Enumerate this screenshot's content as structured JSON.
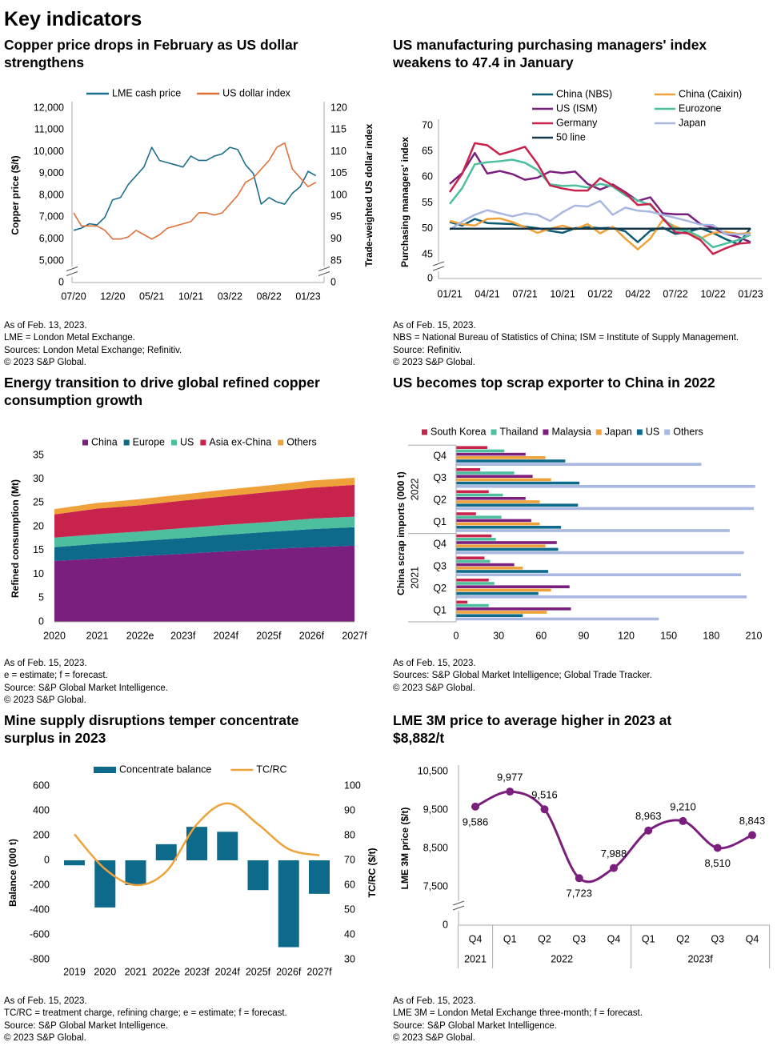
{
  "title": "Key indicators",
  "chart_data": [
    {
      "type": "line",
      "title": [
        "Copper price drops in February as US dollar",
        "strengthens"
      ],
      "categories": [
        "07/20",
        null,
        null,
        null,
        null,
        "12/20",
        null,
        null,
        null,
        null,
        "05/21",
        null,
        null,
        null,
        null,
        "10/21",
        null,
        null,
        null,
        null,
        "03/22",
        null,
        null,
        null,
        null,
        "08/22",
        null,
        null,
        null,
        null,
        "01/23",
        null
      ],
      "series": [
        {
          "name": "LME cash price",
          "color": "#1b6f8c",
          "values": [
            6400,
            6500,
            6700,
            6650,
            7000,
            7800,
            7900,
            8500,
            8900,
            9300,
            10200,
            9600,
            9500,
            9400,
            9300,
            9800,
            9600,
            9600,
            9800,
            9900,
            10200,
            10100,
            9400,
            9000,
            7600,
            7900,
            7700,
            7600,
            8100,
            8400,
            9100,
            8900
          ]
        },
        {
          "name": "US dollar index",
          "color": "#e0703a",
          "axis": "y2",
          "values": [
            96,
            93,
            93,
            93,
            92,
            90,
            90,
            90.5,
            92,
            91,
            90,
            91,
            92.5,
            93,
            93.5,
            94,
            96,
            96,
            95.5,
            96,
            98,
            100,
            103,
            104,
            106,
            108,
            111,
            112,
            106,
            104,
            102,
            103
          ]
        }
      ],
      "ylabel": "Copper price ($/t)",
      "y2label": "Trade-weighted US dollar index",
      "ylim": [
        0,
        12000
      ],
      "yticks": [
        0,
        {
          "value": 5000,
          "label": "5,000"
        },
        {
          "value": 6000,
          "label": "6,000"
        },
        {
          "value": 7000,
          "label": "7,000"
        },
        {
          "value": 8000,
          "label": "8,000"
        },
        {
          "value": 9000,
          "label": "9,000"
        },
        {
          "value": 10000,
          "label": "10,000"
        },
        {
          "value": 11000,
          "label": "11,000"
        },
        {
          "value": 12000,
          "label": "12,000"
        }
      ],
      "y2lim": [
        0,
        120
      ],
      "y2ticks": [
        0,
        85,
        90,
        95,
        100,
        105,
        110,
        115,
        120
      ],
      "axis_break": true,
      "notes": [
        "As of Feb. 13, 2023.",
        "LME = London Metal Exchange.",
        "Sources: London Metal Exchange; Refinitiv.",
        "© 2023 S&P Global."
      ]
    },
    {
      "type": "line",
      "title": [
        "US manufacturing purchasing managers' index",
        "weakens to 47.4 in January"
      ],
      "categories": [
        "01/21",
        null,
        null,
        "04/21",
        null,
        null,
        "07/21",
        null,
        null,
        "10/21",
        null,
        null,
        "01/22",
        null,
        null,
        "04/22",
        null,
        null,
        "07/22",
        null,
        null,
        "10/22",
        null,
        null,
        "01/23"
      ],
      "series": [
        {
          "name": "China (NBS)",
          "color": "#0d5c75",
          "values": [
            51.3,
            50.6,
            51.9,
            51.1,
            51,
            50.9,
            50.4,
            50.1,
            49.6,
            49.2,
            50.1,
            50.3,
            50.1,
            50.2,
            49.5,
            47.4,
            49.6,
            50.2,
            49,
            49.4,
            50.1,
            49.2,
            48,
            47,
            50.1
          ]
        },
        {
          "name": "China (Caixin)",
          "color": "#f0a23a",
          "values": [
            51.5,
            50.9,
            50.6,
            51.9,
            52,
            51.3,
            50.3,
            49.2,
            50,
            50.6,
            49.9,
            50.9,
            49.1,
            50.4,
            48.1,
            46,
            48.1,
            51.7,
            50.4,
            49.5,
            48.1,
            49.2,
            49.4,
            49,
            49.2
          ]
        },
        {
          "name": "US (ISM)",
          "color": "#7b1f7e",
          "values": [
            58.7,
            60.8,
            64.7,
            60.7,
            61.2,
            60.6,
            59.5,
            59.9,
            61.1,
            60.8,
            61.1,
            58.7,
            57.6,
            58.6,
            57.1,
            55.4,
            56.1,
            53,
            52.8,
            52.8,
            50.9,
            50.2,
            49,
            48.4,
            47.4
          ]
        },
        {
          "name": "Eurozone",
          "color": "#4dbf9f",
          "values": [
            54.8,
            57.9,
            62.5,
            62.9,
            63.1,
            63.4,
            62.8,
            61.4,
            58.6,
            58.3,
            58.4,
            58,
            58.7,
            58.2,
            56.5,
            55.5,
            54.6,
            52.1,
            49.8,
            49.6,
            48.4,
            46.4,
            47.1,
            47.8,
            48.8
          ]
        },
        {
          "name": "Germany",
          "color": "#c8234d",
          "values": [
            57.1,
            60.7,
            66.6,
            66.2,
            64.4,
            65.1,
            65.9,
            62.6,
            58.4,
            57.8,
            57.4,
            57.4,
            59.8,
            58.4,
            56.9,
            54.6,
            54.8,
            52,
            49.3,
            49.1,
            47.8,
            45.1,
            46.2,
            47.1,
            47.3
          ]
        },
        {
          "name": "Japan",
          "color": "#a9b8e0",
          "values": [
            49.8,
            51.4,
            52.7,
            53.6,
            53,
            52.4,
            53,
            52.7,
            51.5,
            53.2,
            54.5,
            54.3,
            55.4,
            52.7,
            54.1,
            53.5,
            53.3,
            52.7,
            52.1,
            51.5,
            50.8,
            50.7,
            49,
            48.9,
            48.9
          ]
        },
        {
          "name": "50 line",
          "color": "#173848",
          "values": [
            50,
            50,
            50,
            50,
            50,
            50,
            50,
            50,
            50,
            50,
            50,
            50,
            50,
            50,
            50,
            50,
            50,
            50,
            50,
            50,
            50,
            50,
            50,
            50,
            50
          ]
        }
      ],
      "ylabel": "Purchasing managers' index",
      "ylim": [
        0,
        70
      ],
      "yticks": [
        0,
        45,
        50,
        55,
        60,
        65,
        70
      ],
      "axis_break": true,
      "notes": [
        "As of Feb. 15, 2023.",
        "NBS = National Bureau of Statistics of China; ISM = Institute of Supply Management.",
        "Source: Refinitiv.",
        "© 2023 S&P Global."
      ]
    },
    {
      "type": "area",
      "title": [
        "Energy transition to drive global refined copper",
        "consumption growth"
      ],
      "categories": [
        "2020",
        "2021",
        "2022e",
        "2023f",
        "2024f",
        "2025f",
        "2026f",
        "2027f"
      ],
      "series": [
        {
          "name": "China",
          "color": "#7b1f7e",
          "values": [
            12.8,
            13.3,
            13.8,
            14.3,
            14.8,
            15.3,
            15.7,
            16.0
          ]
        },
        {
          "name": "Europe",
          "color": "#0d6a8a",
          "values": [
            2.9,
            3.1,
            3.2,
            3.3,
            3.5,
            3.6,
            3.8,
            3.9
          ]
        },
        {
          "name": "US",
          "color": "#4dbf9f",
          "values": [
            2.0,
            2.0,
            2.0,
            2.1,
            2.1,
            2.1,
            2.2,
            2.2
          ]
        },
        {
          "name": "Asia ex-China",
          "color": "#c8234d",
          "values": [
            4.9,
            5.4,
            5.5,
            5.8,
            6.0,
            6.3,
            6.5,
            6.7
          ]
        },
        {
          "name": "Others",
          "color": "#f0a23a",
          "values": [
            1.1,
            1.2,
            1.3,
            1.3,
            1.4,
            1.4,
            1.5,
            1.5
          ]
        }
      ],
      "ylabel": "Refined consumption (Mt)",
      "ylim": [
        0,
        35
      ],
      "yticks": [
        0,
        5,
        10,
        15,
        20,
        25,
        30,
        35
      ],
      "notes": [
        "As of Feb. 15, 2023.",
        "e = estimate; f = forecast.",
        "Source: S&P Global Market Intelligence.",
        "© 2023 S&P Global."
      ]
    },
    {
      "type": "bar",
      "orientation": "horizontal",
      "title": [
        "US becomes top scrap exporter to China in 2022"
      ],
      "categories": [
        "Q4",
        "Q3",
        "Q2",
        "Q1",
        "Q4",
        "Q3",
        "Q2",
        "Q1"
      ],
      "category_groups": [
        "2022",
        "2022",
        "2022",
        "2022",
        "2021",
        "2021",
        "2021",
        "2021"
      ],
      "series": [
        {
          "name": "South Korea",
          "color": "#c8234d",
          "values": [
            22,
            17,
            23,
            14,
            25,
            20,
            23,
            8
          ]
        },
        {
          "name": "Thailand",
          "color": "#4dbf9f",
          "values": [
            34,
            41,
            33,
            32,
            28,
            24,
            27,
            23
          ]
        },
        {
          "name": "Malaysia",
          "color": "#7b1f7e",
          "values": [
            49,
            54,
            49,
            53,
            71,
            41,
            80,
            81
          ]
        },
        {
          "name": "Japan",
          "color": "#f0a23a",
          "values": [
            63,
            67,
            59,
            59,
            63,
            47,
            67,
            64
          ]
        },
        {
          "name": "US",
          "color": "#0d6a8a",
          "values": [
            77,
            87,
            86,
            74,
            72,
            65,
            58,
            47
          ]
        },
        {
          "name": "Others",
          "color": "#a9b8e0",
          "values": [
            173,
            211,
            210,
            193,
            203,
            201,
            205,
            143
          ]
        }
      ],
      "ylabel": "China scrap imports (000 t)",
      "xlim": [
        0,
        210
      ],
      "xticks": [
        0,
        30,
        60,
        90,
        120,
        150,
        180,
        210
      ],
      "notes": [
        "As of Feb. 15, 2023.",
        "Sources: S&P Global Market Intelligence; Global Trade Tracker.",
        "© 2023 S&P Global."
      ]
    },
    {
      "type": "combo",
      "title": [
        "Mine supply disruptions temper concentrate",
        "surplus in 2023"
      ],
      "categories": [
        "2019",
        "2020",
        "2021",
        "2022e",
        "2023f",
        "2024f",
        "2025f",
        "2026f",
        "2027f"
      ],
      "series": [
        {
          "name": "Concentrate balance",
          "type": "bar",
          "color": "#0d6a8a",
          "values": [
            -40,
            -380,
            -200,
            130,
            270,
            230,
            -240,
            -700,
            -270
          ]
        },
        {
          "name": "TC/RC",
          "type": "line",
          "axis": "y2",
          "smooth": true,
          "color": "#f0a23a",
          "values": [
            80.5,
            66.5,
            60,
            65.5,
            84.5,
            93,
            84.5,
            74.5,
            72
          ]
        }
      ],
      "ylabel": "Balance (000 t)",
      "y2label": "TC/RC ($/t)",
      "ylim": [
        -800,
        600
      ],
      "yticks": [
        -800,
        -600,
        -400,
        -200,
        0,
        200,
        400,
        600
      ],
      "y2lim": [
        30,
        100
      ],
      "y2ticks": [
        30,
        40,
        50,
        60,
        70,
        80,
        90,
        100
      ],
      "notes": [
        "As of Feb. 15, 2023.",
        "TC/RC = treatment charge, refining charge; e = estimate; f = forecast.",
        "Source: S&P Global Market Intelligence.",
        "© 2023 S&P Global."
      ]
    },
    {
      "type": "line",
      "title": [
        "LME 3M price to average higher in 2023 at",
        "$8,882/t"
      ],
      "categories": [
        "Q4",
        "Q1",
        "Q2",
        "Q3",
        "Q4",
        "Q1",
        "Q2",
        "Q3",
        "Q4"
      ],
      "category_groups": [
        "2021",
        "2022",
        "2022",
        "2022",
        "2022",
        "2023f",
        "2023f",
        "2023f",
        "2023f"
      ],
      "values": [
        9586,
        9977,
        9516,
        7723,
        7988,
        8963,
        9210,
        8510,
        8843
      ],
      "value_labels": [
        "9,586",
        "9,977",
        "9,516",
        "7,723",
        "7,988",
        "8,963",
        "9,210",
        "8,510",
        "8,843"
      ],
      "color": "#7b1f7e",
      "smooth": true,
      "markers": true,
      "ylabel": "LME 3M price ($/t)",
      "ylim": [
        0,
        10500
      ],
      "yticks": [
        0,
        {
          "value": 7500,
          "label": "7,500"
        },
        {
          "value": 8500,
          "label": "8,500"
        },
        {
          "value": 9500,
          "label": "9,500"
        },
        {
          "value": 10500,
          "label": "10,500"
        }
      ],
      "axis_break": true,
      "notes": [
        "As of Feb. 15, 2023.",
        "LME 3M = London Metal Exchange three-month; f = forecast.",
        "Source: S&P Global Market Intelligence.",
        "© 2023 S&P Global."
      ]
    }
  ]
}
